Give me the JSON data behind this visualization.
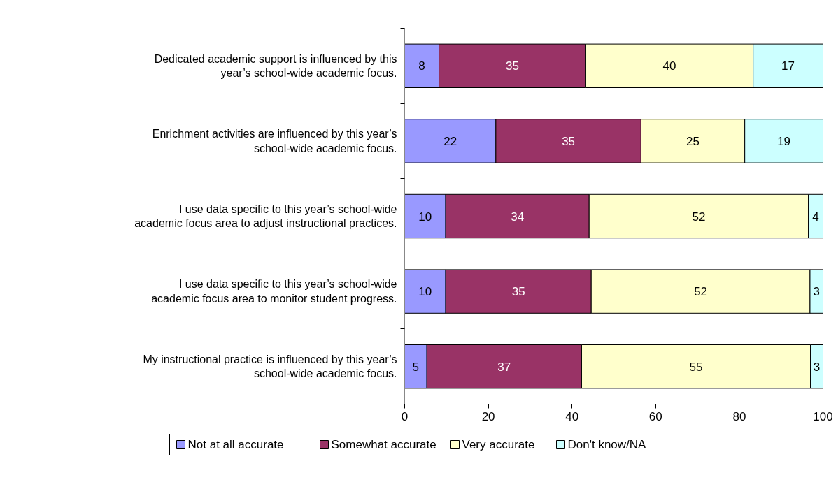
{
  "chart_data": {
    "type": "bar",
    "orientation": "horizontal",
    "stacked": true,
    "categories": [
      "Dedicated academic support is influenced by this year’s school-wide academic focus.",
      "Enrichment activities are influenced by this year’s school-wide academic focus.",
      "I use data specific to this year’s school-wide academic focus area to adjust instructional practices.",
      "I use data specific to this year’s school-wide academic focus area to monitor student progress.",
      "My instructional practice is influenced by this year’s school-wide academic focus."
    ],
    "series": [
      {
        "name": "Not at all accurate",
        "color": "#9999ff",
        "values": [
          8.2,
          21.8,
          9.8,
          9.8,
          5.3
        ],
        "value_labels": [
          "8",
          "22",
          "10",
          "10",
          "5"
        ]
      },
      {
        "name": "Somewhat accurate",
        "color": "#993366",
        "values": [
          35.1,
          34.7,
          34.3,
          34.8,
          37
        ],
        "value_labels": [
          "35",
          "35",
          "34",
          "35",
          "37"
        ]
      },
      {
        "name": "Very accurate",
        "color": "#ffffcc",
        "values": [
          40,
          24.8,
          52.4,
          52.3,
          54.7
        ],
        "value_labels": [
          "40",
          "25",
          "52",
          "52",
          "55"
        ]
      },
      {
        "name": "Don't know/NA",
        "color": "#ccffff",
        "values": [
          16.7,
          18.7,
          3.5,
          3.1,
          3
        ],
        "value_labels": [
          "17",
          "19",
          "4",
          "3",
          "3"
        ]
      }
    ],
    "xlim": [
      0,
      100
    ],
    "xticks": [
      0,
      20,
      40,
      60,
      80,
      100
    ],
    "grid": false,
    "legend": "bottom"
  }
}
